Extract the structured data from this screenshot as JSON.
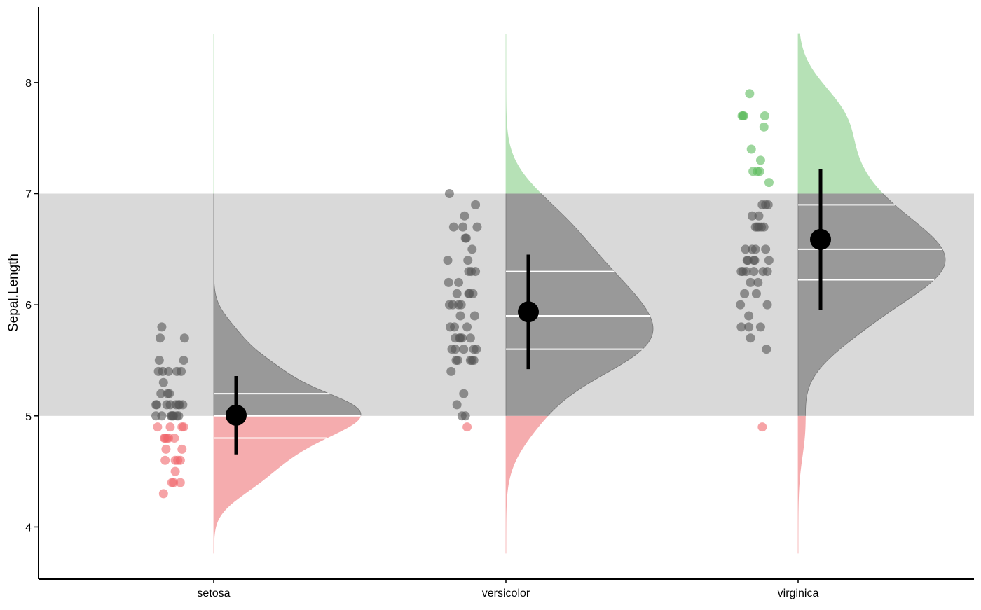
{
  "chart_data": {
    "type": "raincloud",
    "ylabel": "Sepal.Length",
    "categories": [
      "setosa",
      "versicolor",
      "virginica"
    ],
    "values": [
      [
        5.1,
        4.9,
        4.7,
        4.6,
        5.0,
        5.4,
        4.6,
        5.0,
        4.4,
        4.9,
        5.4,
        4.8,
        4.8,
        4.3,
        5.8,
        5.7,
        5.4,
        5.1,
        5.7,
        5.1,
        5.4,
        5.1,
        4.6,
        5.1,
        4.8,
        5.0,
        5.0,
        5.2,
        5.2,
        4.7,
        4.8,
        5.4,
        5.2,
        5.5,
        4.9,
        5.0,
        5.5,
        4.9,
        4.4,
        5.1,
        5.0,
        4.5,
        4.4,
        5.0,
        5.1,
        4.8,
        5.1,
        4.6,
        5.3,
        5.0
      ],
      [
        7.0,
        6.4,
        6.9,
        5.5,
        6.5,
        5.7,
        6.3,
        4.9,
        6.6,
        5.2,
        5.0,
        5.9,
        6.0,
        6.1,
        5.6,
        6.7,
        5.6,
        5.8,
        6.2,
        5.6,
        5.9,
        6.1,
        6.3,
        6.1,
        6.4,
        6.6,
        6.8,
        6.7,
        6.0,
        5.7,
        5.5,
        5.5,
        5.8,
        6.0,
        5.4,
        6.0,
        6.7,
        6.3,
        5.6,
        5.5,
        5.5,
        6.1,
        5.8,
        5.0,
        5.6,
        5.7,
        5.7,
        6.2,
        5.1,
        5.7
      ],
      [
        6.3,
        5.8,
        7.1,
        6.3,
        6.5,
        7.6,
        4.9,
        7.3,
        6.7,
        7.2,
        6.5,
        6.4,
        6.8,
        5.7,
        5.8,
        6.4,
        6.5,
        7.7,
        7.7,
        6.0,
        6.9,
        5.6,
        7.7,
        6.3,
        6.7,
        7.2,
        6.2,
        6.1,
        6.4,
        7.2,
        7.4,
        7.9,
        6.4,
        6.3,
        6.1,
        7.7,
        6.3,
        6.4,
        6.0,
        6.9,
        6.7,
        6.9,
        5.8,
        6.8,
        6.7,
        6.7,
        6.3,
        6.5,
        6.2,
        5.9
      ]
    ],
    "means": [
      5.006,
      5.936,
      6.588
    ],
    "sds": [
      0.352,
      0.516,
      0.636
    ],
    "quartiles": [
      [
        4.8,
        5.0,
        5.2
      ],
      [
        5.6,
        5.9,
        6.3
      ],
      [
        6.225,
        6.5,
        6.9
      ]
    ],
    "band": [
      5,
      7
    ],
    "band_color": "#d9d9d9",
    "point_colors": [
      "#f0656a",
      "#555555",
      "#5cba5c"
    ],
    "density_colors": [
      "#f5acae",
      "#999999",
      "#b6e1b6"
    ],
    "ylim": [
      3.53,
      8.68
    ],
    "yticks": [
      4,
      5,
      6,
      7,
      8
    ]
  }
}
